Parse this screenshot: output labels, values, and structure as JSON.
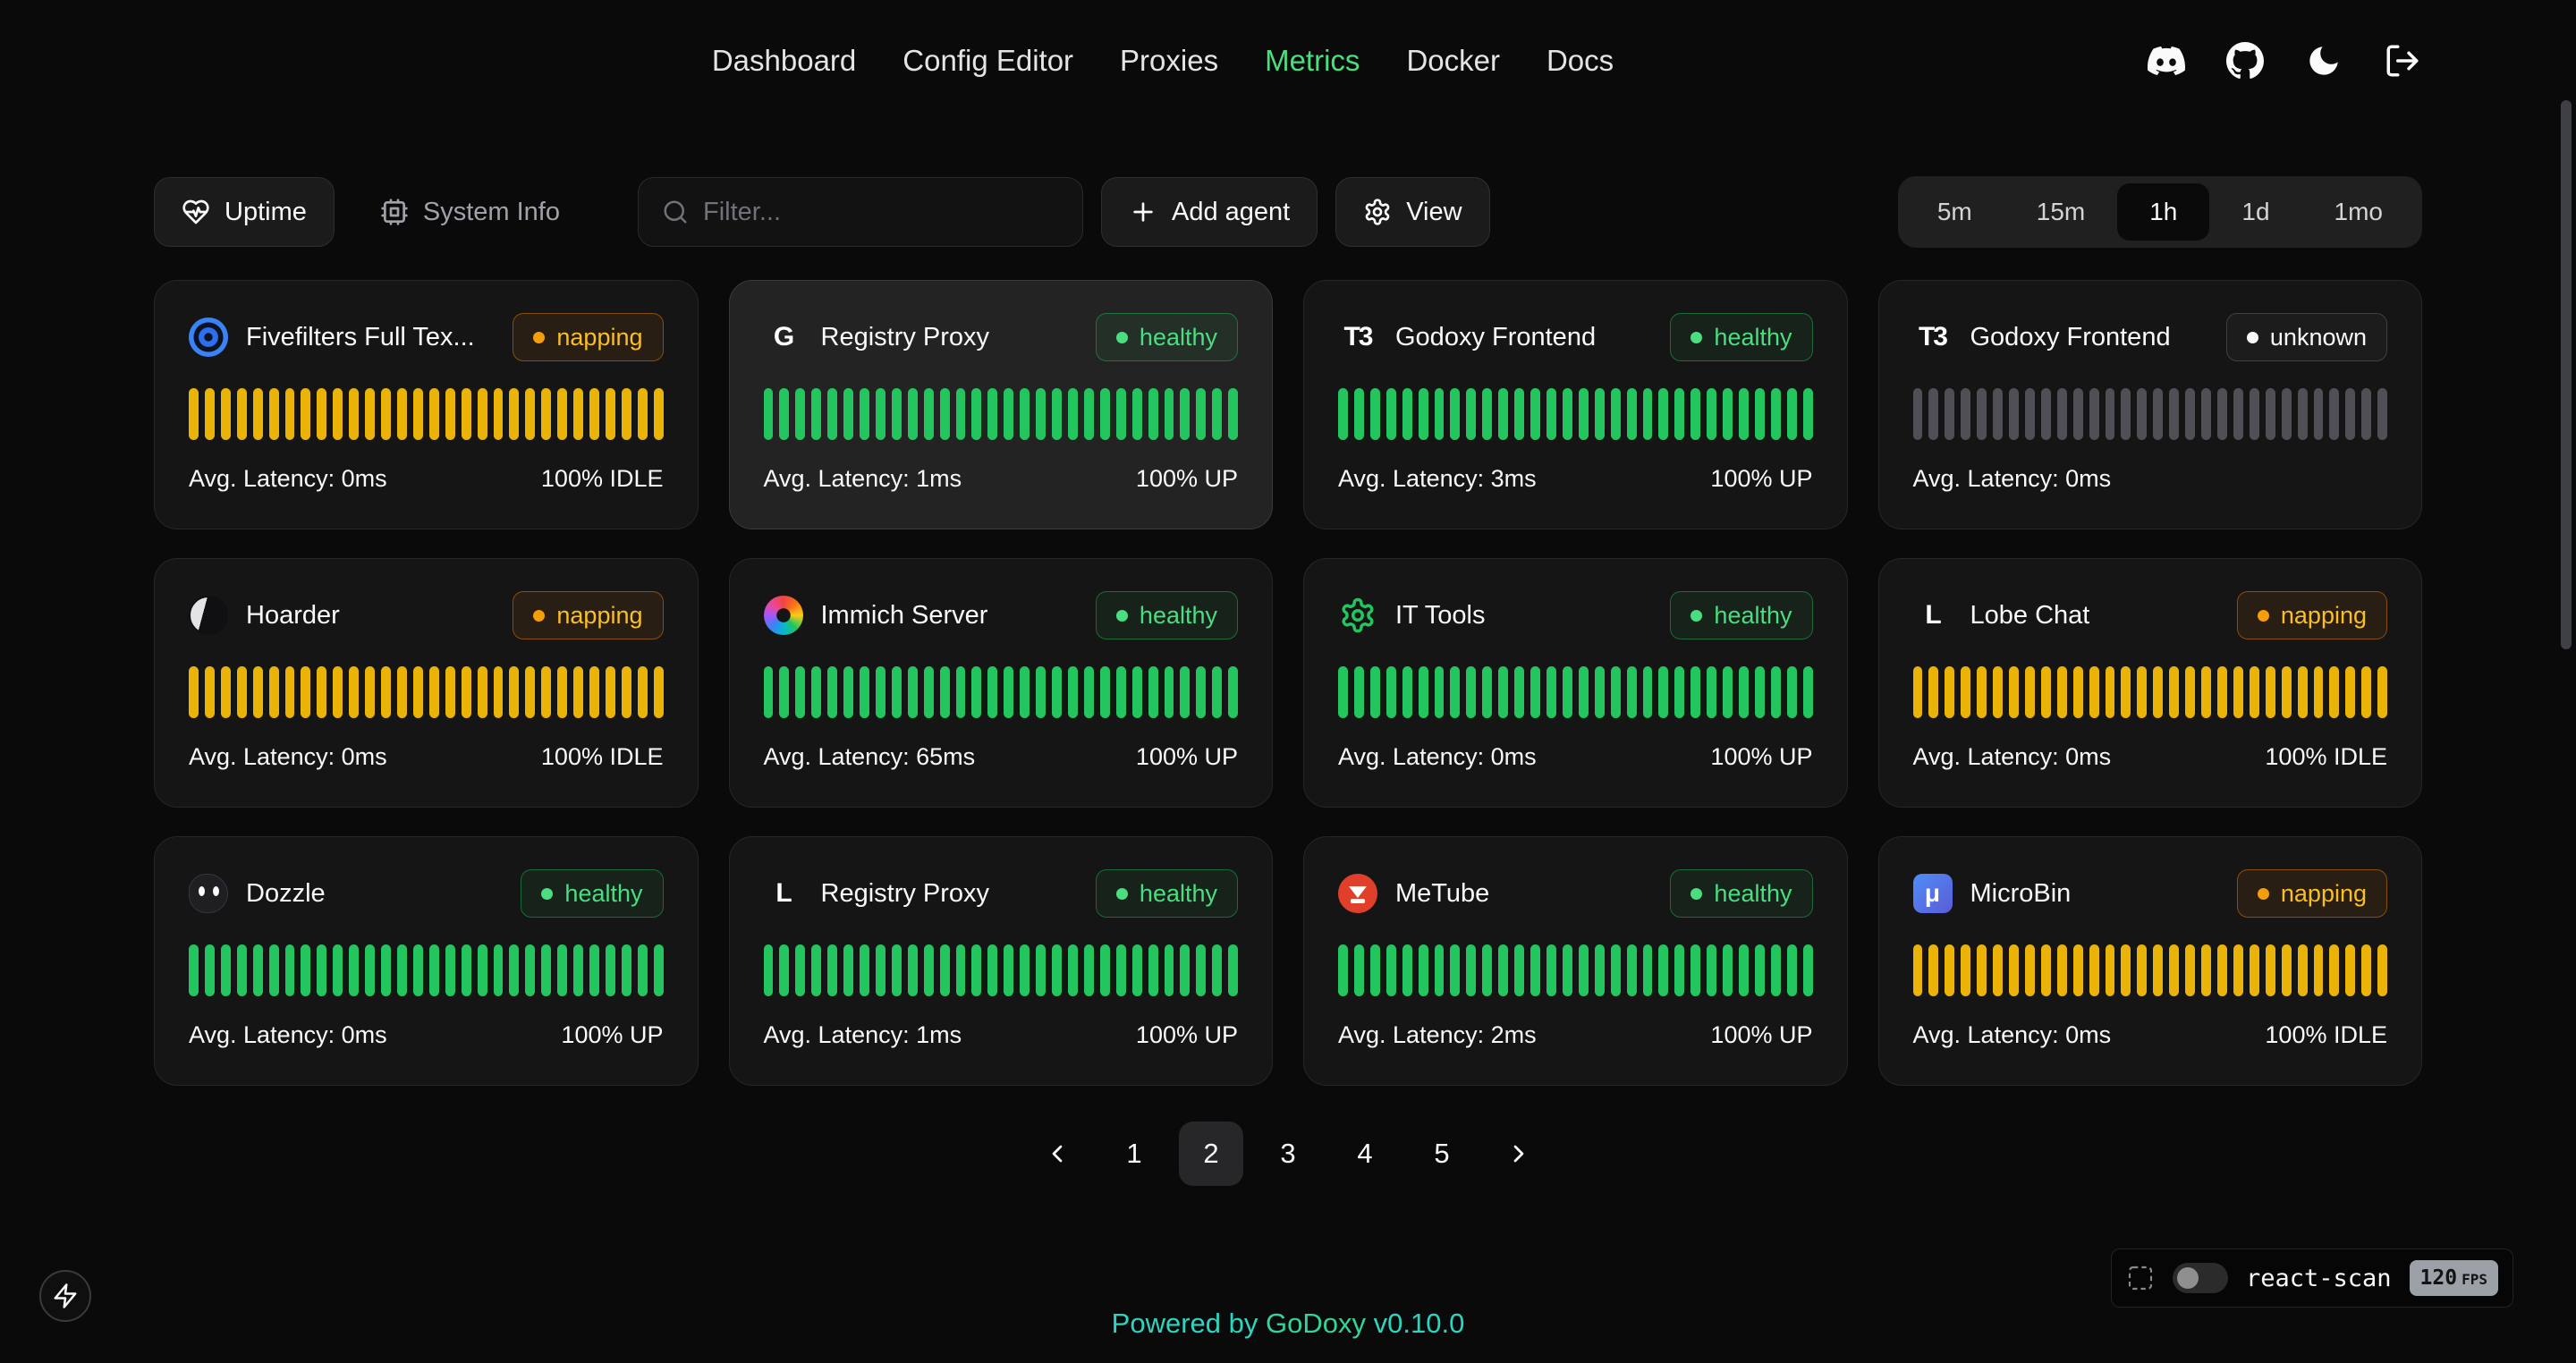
{
  "nav": {
    "items": [
      {
        "label": "Dashboard",
        "active": false
      },
      {
        "label": "Config Editor",
        "active": false
      },
      {
        "label": "Proxies",
        "active": false
      },
      {
        "label": "Metrics",
        "active": true
      },
      {
        "label": "Docker",
        "active": false
      },
      {
        "label": "Docs",
        "active": false
      }
    ],
    "icons": [
      "discord-icon",
      "github-icon",
      "theme-toggle-moon-icon",
      "logout-icon"
    ]
  },
  "toolbar": {
    "uptime_tab": "Uptime",
    "system_info_tab": "System Info",
    "filter_placeholder": "Filter...",
    "add_agent_label": "Add agent",
    "view_label": "View",
    "time_ranges": [
      {
        "label": "5m",
        "active": false
      },
      {
        "label": "15m",
        "active": false
      },
      {
        "label": "1h",
        "active": true
      },
      {
        "label": "1d",
        "active": false
      },
      {
        "label": "1mo",
        "active": false
      }
    ]
  },
  "bars_per_card": 30,
  "cards": [
    {
      "name": "Fivefilters Full Tex...",
      "icon": {
        "kind": "fivefilters",
        "name": "fivefilters-logo-icon"
      },
      "status": "napping",
      "status_label": "napping",
      "latency": "Avg. Latency: 0ms",
      "uptime": "100% IDLE",
      "bars": "yellow",
      "highlighted": false
    },
    {
      "name": "Registry Proxy",
      "icon": {
        "kind": "letter",
        "text": "G",
        "name": "letter-g-icon"
      },
      "status": "healthy",
      "status_label": "healthy",
      "latency": "Avg. Latency: 1ms",
      "uptime": "100% UP",
      "bars": "green",
      "highlighted": true
    },
    {
      "name": "Godoxy Frontend",
      "icon": {
        "kind": "letter",
        "text": "T3",
        "name": "t3-logo-icon"
      },
      "status": "healthy",
      "status_label": "healthy",
      "latency": "Avg. Latency: 3ms",
      "uptime": "100% UP",
      "bars": "green",
      "highlighted": false
    },
    {
      "name": "Godoxy Frontend",
      "icon": {
        "kind": "letter",
        "text": "T3",
        "name": "t3-logo-icon"
      },
      "status": "unknown",
      "status_label": "unknown",
      "latency": "Avg. Latency: 0ms",
      "uptime": "",
      "bars": "gray",
      "highlighted": false
    },
    {
      "name": "Hoarder",
      "icon": {
        "kind": "hoarder",
        "name": "hoarder-logo-icon"
      },
      "status": "napping",
      "status_label": "napping",
      "latency": "Avg. Latency: 0ms",
      "uptime": "100% IDLE",
      "bars": "yellow",
      "highlighted": false
    },
    {
      "name": "Immich Server",
      "icon": {
        "kind": "immich",
        "name": "immich-logo-icon"
      },
      "status": "healthy",
      "status_label": "healthy",
      "latency": "Avg. Latency: 65ms",
      "uptime": "100% UP",
      "bars": "green",
      "highlighted": false
    },
    {
      "name": "IT Tools",
      "icon": {
        "kind": "ittools",
        "name": "it-tools-logo-icon"
      },
      "status": "healthy",
      "status_label": "healthy",
      "latency": "Avg. Latency: 0ms",
      "uptime": "100% UP",
      "bars": "green",
      "highlighted": false
    },
    {
      "name": "Lobe Chat",
      "icon": {
        "kind": "letter",
        "text": "L",
        "name": "letter-l-icon"
      },
      "status": "napping",
      "status_label": "napping",
      "latency": "Avg. Latency: 0ms",
      "uptime": "100% IDLE",
      "bars": "yellow",
      "highlighted": false
    },
    {
      "name": "Dozzle",
      "icon": {
        "kind": "dozzle",
        "name": "dozzle-logo-icon"
      },
      "status": "healthy",
      "status_label": "healthy",
      "latency": "Avg. Latency: 0ms",
      "uptime": "100% UP",
      "bars": "green",
      "highlighted": false
    },
    {
      "name": "Registry Proxy",
      "icon": {
        "kind": "letter",
        "text": "L",
        "name": "letter-l-icon"
      },
      "status": "healthy",
      "status_label": "healthy",
      "latency": "Avg. Latency: 1ms",
      "uptime": "100% UP",
      "bars": "green",
      "highlighted": false
    },
    {
      "name": "MeTube",
      "icon": {
        "kind": "metube",
        "name": "metube-logo-icon"
      },
      "status": "healthy",
      "status_label": "healthy",
      "latency": "Avg. Latency: 2ms",
      "uptime": "100% UP",
      "bars": "green",
      "highlighted": false
    },
    {
      "name": "MicroBin",
      "icon": {
        "kind": "microbin",
        "text": "μ",
        "name": "microbin-logo-icon"
      },
      "status": "napping",
      "status_label": "napping",
      "latency": "Avg. Latency: 0ms",
      "uptime": "100% IDLE",
      "bars": "yellow",
      "highlighted": false
    }
  ],
  "pagination": {
    "pages": [
      "1",
      "2",
      "3",
      "4",
      "5"
    ],
    "active": "2"
  },
  "footer": {
    "powered_by": "Powered by",
    "brand": "GoDoxy",
    "version": "v0.10.0"
  },
  "react_scan": {
    "label": "react-scan",
    "fps_value": "120",
    "fps_unit": "FPS"
  },
  "colors": {
    "background": "#0a0a0a",
    "card_bg": "#151515",
    "accent_green": "#4ade80",
    "bar_green": "#22c55e",
    "bar_yellow": "#eab308",
    "bar_gray": "#4f4f55",
    "status_napping": "#fbbf24",
    "brand_teal": "#2dd4bf"
  }
}
